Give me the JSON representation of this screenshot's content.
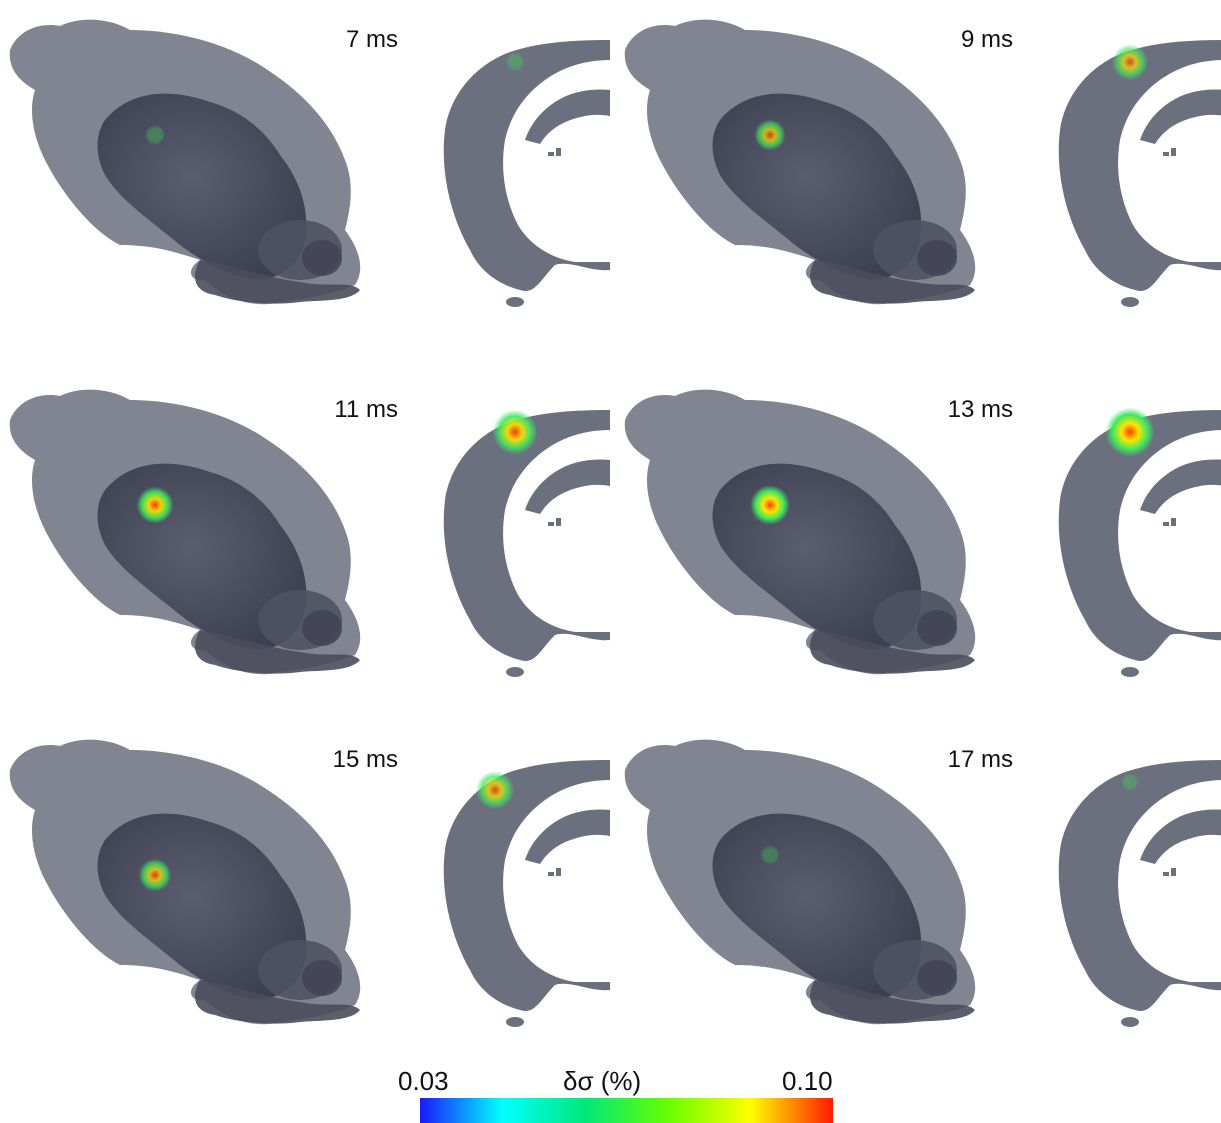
{
  "figure": {
    "panels": [
      {
        "label": "7 ms",
        "activation": 0.15
      },
      {
        "label": "9 ms",
        "activation": 0.55
      },
      {
        "label": "11 ms",
        "activation": 0.75
      },
      {
        "label": "13 ms",
        "activation": 0.85
      },
      {
        "label": "15 ms",
        "activation": 0.6
      },
      {
        "label": "17 ms",
        "activation": 0.12
      }
    ],
    "colorbar": {
      "min_label": "0.03",
      "max_label": "0.10",
      "quantity_label": "δσ (%)",
      "colors": [
        "#1a1aff",
        "#00ffff",
        "#00e87a",
        "#66ff00",
        "#ffff00",
        "#ff1a00"
      ]
    },
    "tissue_color": "#6b707f",
    "brain_color": "#4e5262"
  }
}
